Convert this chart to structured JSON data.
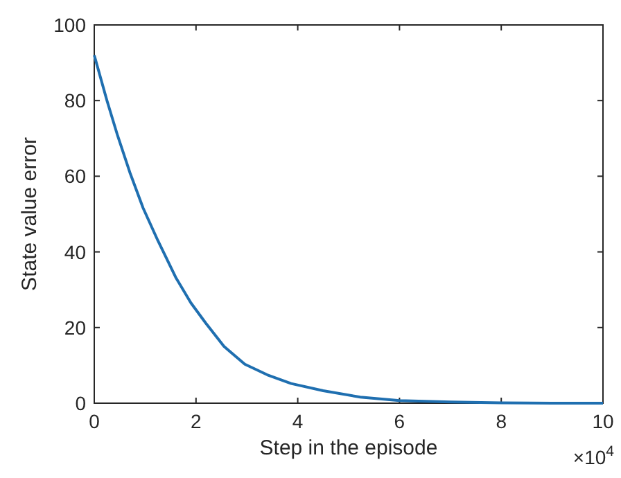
{
  "chart_data": {
    "type": "line",
    "xlabel": "Step in the episode",
    "ylabel": "State value error",
    "annotations": [
      "×10$^{4}$"
    ],
    "x": [
      0,
      0.25,
      0.46,
      0.7,
      0.96,
      1.25,
      1.6,
      1.9,
      2.19,
      2.55,
      2.96,
      3.4,
      3.87,
      4.5,
      5.23,
      6,
      7,
      8,
      9,
      10
    ],
    "series": [
      {
        "color": "#1f6fb0",
        "values": [
          92,
          80,
          70.7,
          61,
          51.6,
          43,
          33.3,
          26.5,
          21.2,
          15,
          10.3,
          7.5,
          5.2,
          3.3,
          1.6,
          0.7,
          0.3,
          0.1,
          0,
          0
        ]
      }
    ],
    "xlim": [
      0,
      10
    ],
    "xticks": [
      0,
      2,
      4,
      6,
      8,
      10
    ],
    "ylim": [
      0,
      100
    ],
    "yticks": [
      0,
      20,
      40,
      60,
      80,
      100
    ],
    "grid": false,
    "marker": "none",
    "line_style": "solid"
  }
}
